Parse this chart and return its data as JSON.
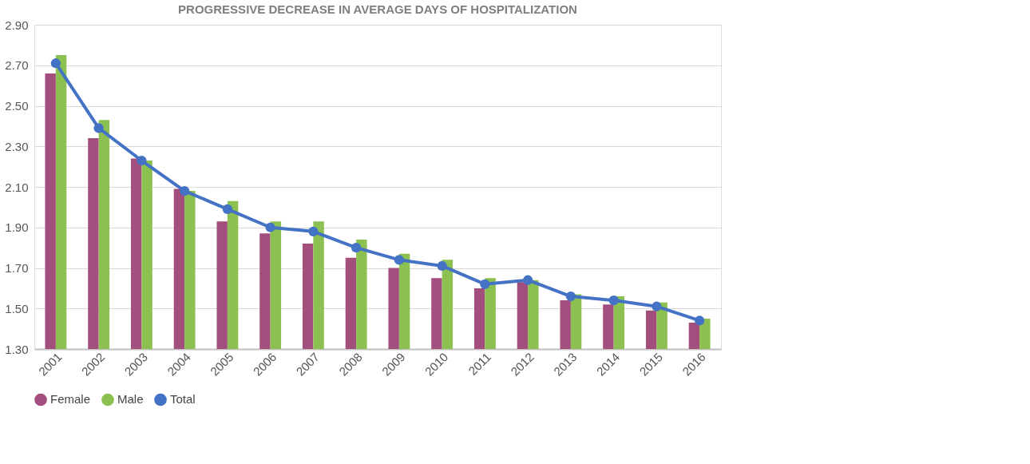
{
  "chart_data": {
    "type": "bar",
    "title": "PROGRESSIVE DECREASE IN AVERAGE DAYS OF HOSPITALIZATION",
    "categories": [
      "2001",
      "2002",
      "2003",
      "2004",
      "2005",
      "2006",
      "2007",
      "2008",
      "2009",
      "2010",
      "2011",
      "2012",
      "2013",
      "2014",
      "2015",
      "2016"
    ],
    "series": [
      {
        "name": "Female",
        "color": "#a34f7d",
        "values": [
          2.66,
          2.34,
          2.24,
          2.09,
          1.93,
          1.87,
          1.82,
          1.75,
          1.7,
          1.65,
          1.6,
          1.63,
          1.54,
          1.52,
          1.49,
          1.43
        ]
      },
      {
        "name": "Male",
        "color": "#8cc152",
        "values": [
          2.75,
          2.43,
          2.23,
          2.08,
          2.03,
          1.93,
          1.93,
          1.84,
          1.77,
          1.74,
          1.65,
          1.64,
          1.57,
          1.56,
          1.53,
          1.45
        ]
      },
      {
        "name": "Total",
        "type": "line",
        "color": "#4472c4",
        "marker": "circle",
        "values": [
          2.71,
          2.39,
          2.23,
          2.08,
          1.99,
          1.9,
          1.88,
          1.8,
          1.74,
          1.71,
          1.62,
          1.64,
          1.56,
          1.54,
          1.51,
          1.44
        ]
      }
    ],
    "ylim": [
      1.3,
      2.9
    ],
    "yticks": [
      {
        "value": 1.3,
        "label": "1.30"
      },
      {
        "value": 1.5,
        "label": "1.50"
      },
      {
        "value": 1.7,
        "label": "1.70"
      },
      {
        "value": 1.9,
        "label": "1.90"
      },
      {
        "value": 2.1,
        "label": "2.10"
      },
      {
        "value": 2.3,
        "label": "2.30"
      },
      {
        "value": 2.5,
        "label": "2.50"
      },
      {
        "value": 2.7,
        "label": "2.70"
      },
      {
        "value": 2.9,
        "label": "2.90"
      }
    ],
    "grid": "y",
    "legend": "bottom"
  }
}
